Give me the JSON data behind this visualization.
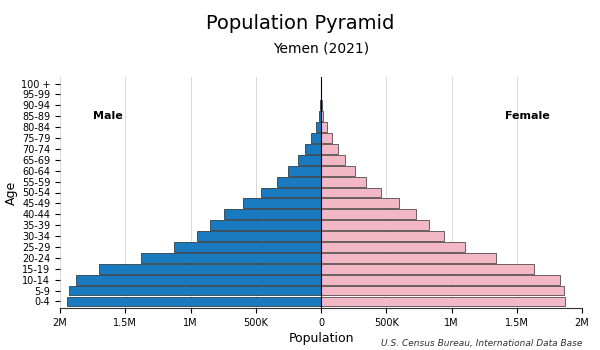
{
  "title": "Population Pyramid",
  "subtitle": "Yemen (2021)",
  "xlabel": "Population",
  "ylabel": "Age",
  "footnote": "U.S. Census Bureau, International Data Base",
  "age_groups": [
    "0-4",
    "5-9",
    "10-14",
    "15-19",
    "20-24",
    "25-29",
    "30-34",
    "35-39",
    "40-44",
    "45-49",
    "50-54",
    "55-59",
    "60-64",
    "65-69",
    "70-74",
    "75-79",
    "80-84",
    "85-89",
    "90-94",
    "95-99",
    "100 +"
  ],
  "male": [
    1950000,
    1930000,
    1880000,
    1700000,
    1380000,
    1130000,
    950000,
    850000,
    740000,
    600000,
    460000,
    340000,
    250000,
    175000,
    120000,
    75000,
    40000,
    17000,
    6000,
    1500,
    300
  ],
  "female": [
    1870000,
    1860000,
    1830000,
    1630000,
    1340000,
    1100000,
    940000,
    830000,
    730000,
    600000,
    460000,
    345000,
    260000,
    185000,
    130000,
    82000,
    44000,
    19000,
    7000,
    1800,
    350
  ],
  "male_color": "#1a7abf",
  "female_color": "#f2b8c6",
  "bar_edge_color": "#000000",
  "bar_edge_width": 0.4,
  "background_color": "#ffffff",
  "xlim": 2000000,
  "title_fontsize": 14,
  "subtitle_fontsize": 10,
  "label_fontsize": 9,
  "tick_fontsize": 7,
  "annotation_fontsize": 8,
  "footnote_fontsize": 6.5
}
